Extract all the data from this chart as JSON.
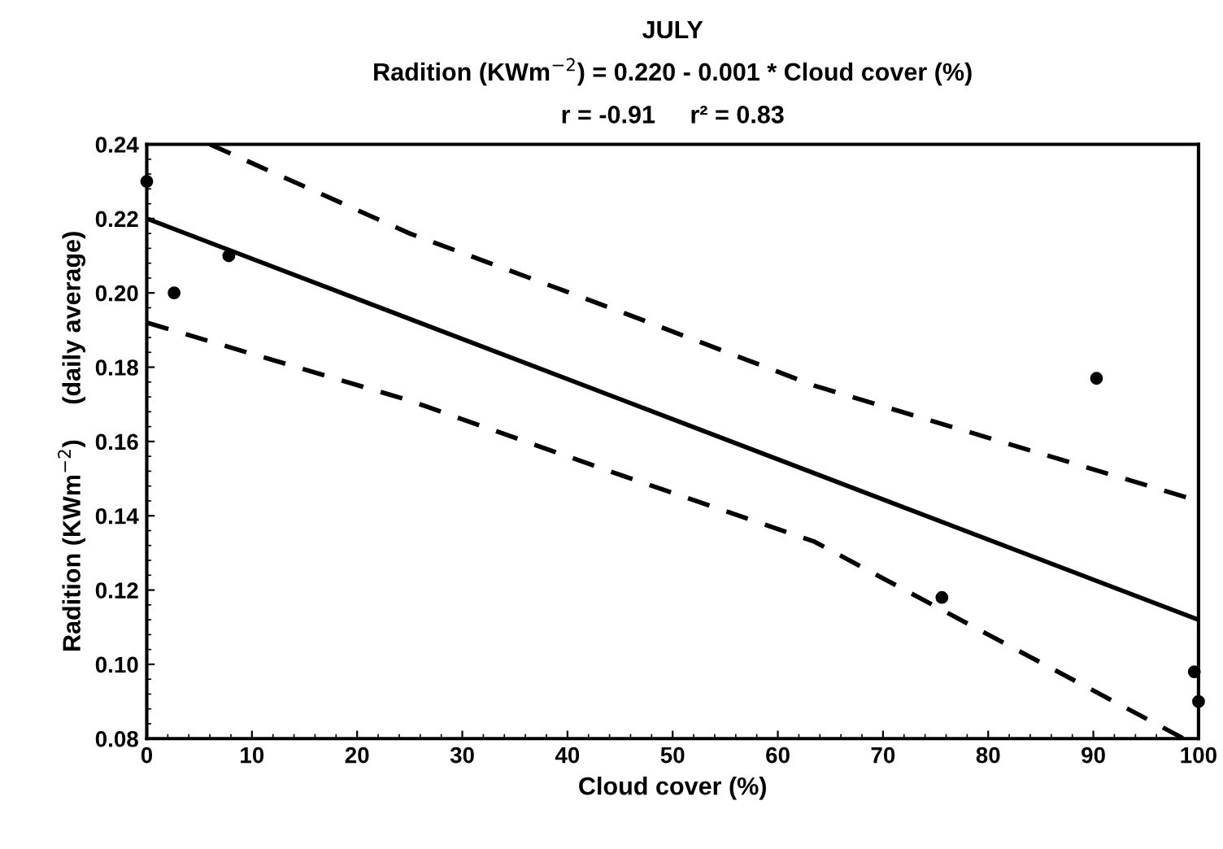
{
  "chart_data": {
    "type": "scatter",
    "title": "JULY",
    "subtitle": "Radition (KWm$^{−2}$) = 0.220 - 0.001 * Cloud cover (%)",
    "annotations": [
      "r = -0.91     r² = 0.83"
    ],
    "xlabel": "Cloud cover (%)",
    "ylabel": "Radition (KWm$^{−2}$)     (daily average)",
    "xlim": [
      0,
      100
    ],
    "xticks": [
      0,
      10,
      20,
      30,
      40,
      50,
      60,
      70,
      80,
      90,
      100
    ],
    "ylim": [
      0.08,
      0.24
    ],
    "yticks": [
      {
        "value": 0.08,
        "label": "0.08"
      },
      {
        "value": 0.1,
        "label": "0.10"
      },
      {
        "value": 0.12,
        "label": "0.12"
      },
      {
        "value": 0.14,
        "label": "0.14"
      },
      {
        "value": 0.16,
        "label": "0.16"
      },
      {
        "value": 0.18,
        "label": "0.18"
      },
      {
        "value": 0.2,
        "label": "0.20"
      },
      {
        "value": 0.22,
        "label": "0.22"
      },
      {
        "value": 0.24,
        "label": "0.24"
      }
    ],
    "grid": false,
    "legend": false,
    "series": [
      {
        "color": "#000000",
        "marker": "circle",
        "x": [
          0,
          2.6,
          7.8,
          75.6,
          90.3,
          99.6,
          100
        ],
        "values": [
          0.23,
          0.2,
          0.21,
          0.118,
          0.177,
          0.098,
          0.09
        ]
      },
      {
        "type": "line",
        "color": "#000000",
        "line_style": "solid",
        "x": [
          0,
          100
        ],
        "values": [
          0.22,
          0.112
        ]
      },
      {
        "type": "line",
        "color": "#000000",
        "line_style": "dashed",
        "x": [
          6,
          25,
          45,
          63.5,
          80,
          100
        ],
        "values": [
          0.24,
          0.216,
          0.195,
          0.175,
          0.161,
          0.144
        ]
      },
      {
        "type": "line",
        "color": "#000000",
        "line_style": "dashed",
        "x": [
          0,
          25,
          45,
          63.5,
          80,
          98.6
        ],
        "values": [
          0.192,
          0.171,
          0.151,
          0.133,
          0.108,
          0.08
        ]
      }
    ]
  }
}
